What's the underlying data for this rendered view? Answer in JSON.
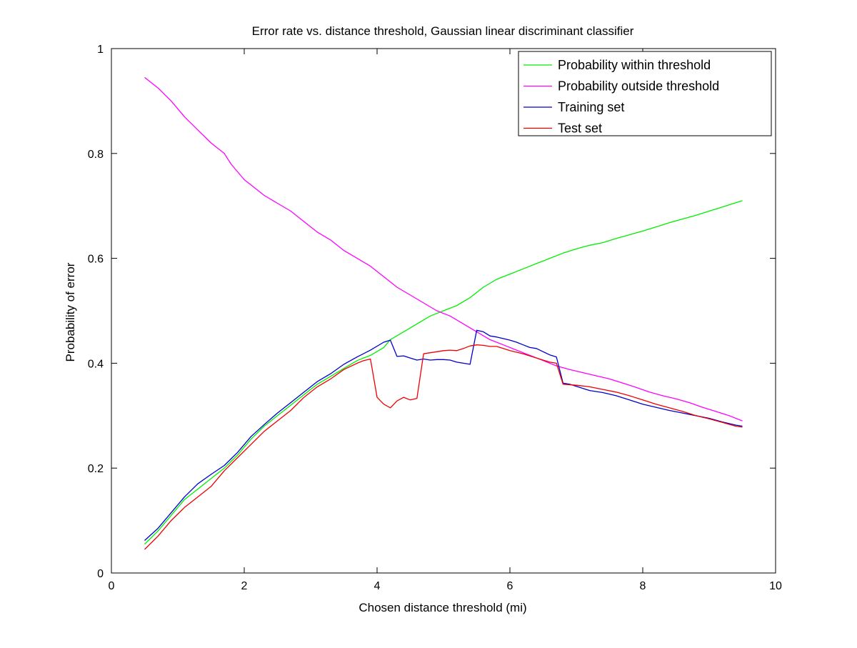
{
  "chart_data": {
    "type": "line",
    "title": "Error rate vs. distance threshold, Gaussian linear discriminant classifier",
    "xlabel": "Chosen distance threshold (mi)",
    "ylabel": "Probability of error",
    "xlim": [
      0,
      10
    ],
    "ylim": [
      0,
      1
    ],
    "xticks": [
      0,
      2,
      4,
      6,
      8,
      10
    ],
    "yticks": [
      0,
      0.2,
      0.4,
      0.6,
      0.8,
      1
    ],
    "xtick_labels": [
      "0",
      "2",
      "4",
      "6",
      "8",
      "10"
    ],
    "ytick_labels": [
      "0",
      "0.2",
      "0.4",
      "0.6",
      "0.8",
      "1"
    ],
    "grid": false,
    "legend_position": "top-right",
    "series": [
      {
        "name": "Probability within threshold",
        "color": "#00ee00",
        "x": [
          0.5,
          0.7,
          0.9,
          1.1,
          1.3,
          1.5,
          1.7,
          1.9,
          2.1,
          2.3,
          2.5,
          2.7,
          2.9,
          3.1,
          3.3,
          3.5,
          3.7,
          3.9,
          4.1,
          4.2,
          4.4,
          4.6,
          4.8,
          5.0,
          5.2,
          5.4,
          5.6,
          5.8,
          6.0,
          6.2,
          6.4,
          6.6,
          6.8,
          7.0,
          7.2,
          7.4,
          7.6,
          7.8,
          8.0,
          8.2,
          8.4,
          8.6,
          8.8,
          9.0,
          9.2,
          9.4,
          9.5
        ],
        "values": [
          0.055,
          0.08,
          0.11,
          0.14,
          0.16,
          0.18,
          0.2,
          0.225,
          0.255,
          0.28,
          0.3,
          0.32,
          0.34,
          0.36,
          0.375,
          0.39,
          0.405,
          0.415,
          0.43,
          0.445,
          0.46,
          0.475,
          0.49,
          0.5,
          0.51,
          0.525,
          0.545,
          0.56,
          0.57,
          0.58,
          0.59,
          0.6,
          0.61,
          0.618,
          0.625,
          0.63,
          0.638,
          0.645,
          0.652,
          0.66,
          0.668,
          0.675,
          0.682,
          0.69,
          0.698,
          0.706,
          0.71
        ]
      },
      {
        "name": "Probability outside threshold",
        "color": "#ff00ff",
        "x": [
          0.5,
          0.7,
          0.9,
          1.1,
          1.3,
          1.5,
          1.7,
          1.8,
          1.9,
          2.0,
          2.1,
          2.3,
          2.5,
          2.7,
          2.9,
          3.1,
          3.3,
          3.5,
          3.7,
          3.9,
          4.1,
          4.3,
          4.5,
          4.7,
          4.9,
          5.1,
          5.3,
          5.5,
          5.7,
          5.9,
          6.1,
          6.3,
          6.5,
          6.7,
          6.9,
          7.1,
          7.3,
          7.5,
          7.7,
          7.9,
          8.1,
          8.3,
          8.5,
          8.7,
          8.9,
          9.1,
          9.3,
          9.5
        ],
        "values": [
          0.945,
          0.925,
          0.9,
          0.87,
          0.845,
          0.82,
          0.8,
          0.78,
          0.765,
          0.75,
          0.74,
          0.72,
          0.705,
          0.69,
          0.67,
          0.65,
          0.635,
          0.615,
          0.6,
          0.585,
          0.565,
          0.545,
          0.53,
          0.515,
          0.5,
          0.49,
          0.475,
          0.46,
          0.445,
          0.435,
          0.425,
          0.415,
          0.405,
          0.395,
          0.388,
          0.382,
          0.376,
          0.37,
          0.362,
          0.354,
          0.345,
          0.338,
          0.332,
          0.325,
          0.316,
          0.308,
          0.3,
          0.29
        ]
      },
      {
        "name": "Training set",
        "color": "#0000cc",
        "x": [
          0.5,
          0.7,
          0.9,
          1.1,
          1.3,
          1.5,
          1.7,
          1.9,
          2.1,
          2.3,
          2.5,
          2.7,
          2.9,
          3.1,
          3.3,
          3.5,
          3.7,
          3.9,
          4.1,
          4.2,
          4.3,
          4.4,
          4.5,
          4.6,
          4.7,
          4.8,
          4.9,
          5.0,
          5.1,
          5.2,
          5.3,
          5.4,
          5.5,
          5.6,
          5.7,
          5.8,
          5.9,
          6.0,
          6.1,
          6.2,
          6.3,
          6.4,
          6.5,
          6.6,
          6.7,
          6.8,
          6.9,
          7.0,
          7.2,
          7.4,
          7.6,
          7.8,
          8.0,
          8.2,
          8.4,
          8.6,
          8.8,
          9.0,
          9.2,
          9.4,
          9.5
        ],
        "values": [
          0.062,
          0.085,
          0.115,
          0.145,
          0.17,
          0.188,
          0.205,
          0.23,
          0.26,
          0.283,
          0.305,
          0.325,
          0.345,
          0.365,
          0.38,
          0.398,
          0.412,
          0.425,
          0.44,
          0.444,
          0.413,
          0.414,
          0.41,
          0.406,
          0.408,
          0.406,
          0.407,
          0.407,
          0.406,
          0.402,
          0.4,
          0.398,
          0.463,
          0.46,
          0.452,
          0.45,
          0.447,
          0.444,
          0.44,
          0.435,
          0.43,
          0.428,
          0.422,
          0.416,
          0.412,
          0.362,
          0.36,
          0.356,
          0.348,
          0.344,
          0.338,
          0.33,
          0.322,
          0.316,
          0.31,
          0.305,
          0.3,
          0.295,
          0.288,
          0.282,
          0.28
        ]
      },
      {
        "name": "Test set",
        "color": "#ee0000",
        "x": [
          0.5,
          0.7,
          0.9,
          1.1,
          1.3,
          1.5,
          1.7,
          1.9,
          2.1,
          2.3,
          2.5,
          2.7,
          2.9,
          3.1,
          3.3,
          3.5,
          3.7,
          3.8,
          3.9,
          4.0,
          4.1,
          4.2,
          4.3,
          4.4,
          4.5,
          4.6,
          4.7,
          4.8,
          4.9,
          5.0,
          5.1,
          5.2,
          5.3,
          5.4,
          5.5,
          5.6,
          5.7,
          5.8,
          5.9,
          6.0,
          6.2,
          6.4,
          6.6,
          6.7,
          6.8,
          7.0,
          7.2,
          7.4,
          7.6,
          7.8,
          8.0,
          8.2,
          8.4,
          8.6,
          8.8,
          9.0,
          9.2,
          9.4,
          9.5
        ],
        "values": [
          0.045,
          0.07,
          0.1,
          0.125,
          0.145,
          0.165,
          0.195,
          0.22,
          0.245,
          0.27,
          0.29,
          0.31,
          0.335,
          0.355,
          0.37,
          0.388,
          0.4,
          0.405,
          0.408,
          0.335,
          0.322,
          0.315,
          0.328,
          0.335,
          0.33,
          0.333,
          0.418,
          0.42,
          0.422,
          0.424,
          0.425,
          0.424,
          0.428,
          0.433,
          0.435,
          0.434,
          0.432,
          0.432,
          0.428,
          0.424,
          0.418,
          0.41,
          0.402,
          0.4,
          0.36,
          0.358,
          0.355,
          0.35,
          0.345,
          0.338,
          0.33,
          0.322,
          0.315,
          0.308,
          0.3,
          0.294,
          0.287,
          0.28,
          0.278
        ]
      }
    ]
  }
}
